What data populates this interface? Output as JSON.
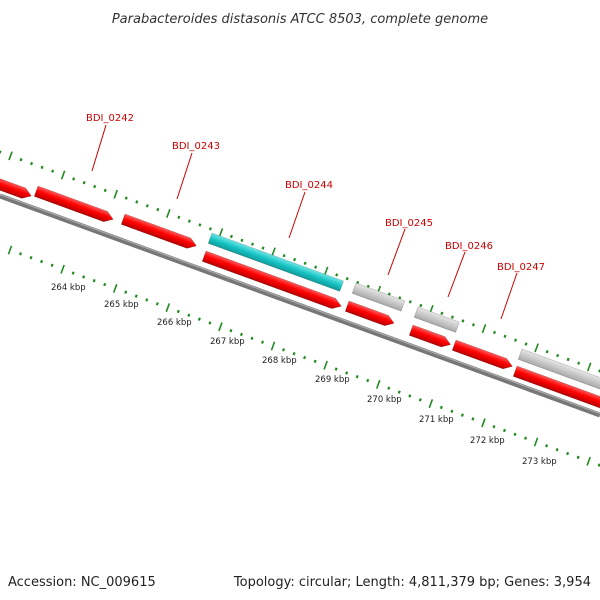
{
  "title": "Parabacteroides distasonis ATCC 8503, complete genome",
  "footer": {
    "accession": "Accession: NC_009615",
    "summary": "Topology: circular; Length: 4,811,379 bp; Genes: 3,954"
  },
  "colors": {
    "forward_gene": "#ff0000",
    "reverse_gene": "#ff0000",
    "highlighted_gene": "#22cccc",
    "other_feature": "#c8c8c8",
    "backbone": "#777777",
    "tick": "#228b22",
    "gene_label": "#cc0000"
  },
  "gene_labels": [
    "BDI_0242",
    "BDI_0243",
    "BDI_0244",
    "BDI_0245",
    "BDI_0246",
    "BDI_0247"
  ],
  "scale_labels": [
    "264 kbp",
    "265 kbp",
    "266 kbp",
    "267 kbp",
    "268 kbp",
    "269 kbp",
    "270 kbp",
    "271 kbp",
    "272 kbp",
    "273 kbp"
  ]
}
